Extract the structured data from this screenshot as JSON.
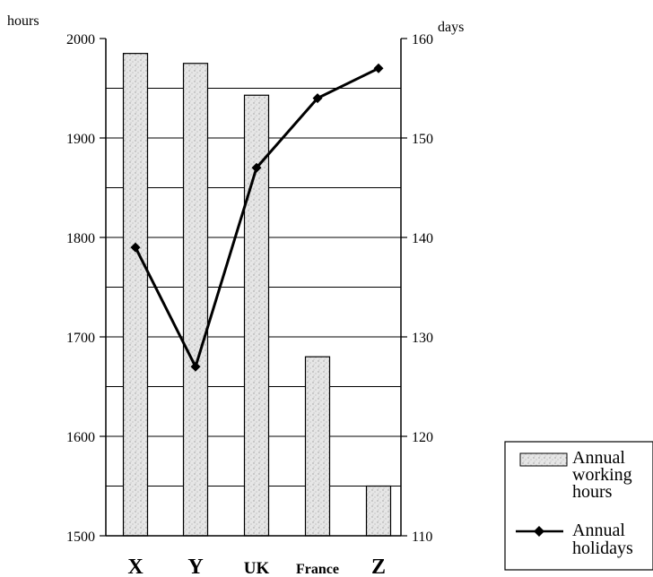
{
  "chart_data": {
    "type": "bar",
    "categories": [
      "X",
      "Y",
      "UK",
      "France",
      "Z"
    ],
    "series": [
      {
        "name": "Annual working hours",
        "kind": "bar",
        "axis": "left",
        "values": [
          1985,
          1975,
          1943,
          1680,
          1550
        ]
      },
      {
        "name": "Annual holidays",
        "kind": "line",
        "axis": "right",
        "marker": "diamond",
        "values": [
          139,
          127,
          147,
          154,
          157
        ]
      }
    ],
    "y_left": {
      "unit": "hours",
      "range": [
        1500,
        2000
      ],
      "ticks": [
        1500,
        1600,
        1700,
        1800,
        1900,
        2000
      ]
    },
    "y_right": {
      "unit": "days",
      "range": [
        110,
        160
      ],
      "ticks": [
        110,
        120,
        130,
        140,
        150,
        160
      ]
    },
    "grid": true,
    "legend": {
      "position": "bottom-right",
      "entries": [
        {
          "lines": [
            "Annual",
            "working",
            "hours"
          ]
        },
        {
          "lines": [
            "Annual",
            "holidays"
          ]
        }
      ]
    },
    "colors": {
      "bar_fill": "#e4e4e4",
      "bar_stroke": "#000000",
      "line": "#000000"
    }
  }
}
